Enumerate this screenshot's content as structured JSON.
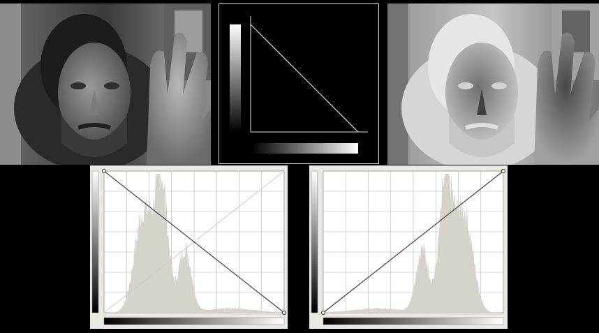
{
  "photo_original": {
    "icon": "face-photo-grayscale"
  },
  "photo_inverted": {
    "icon": "face-photo-negative"
  },
  "curve_preview": {
    "curve": "inverted",
    "colors": {
      "background": "#000000",
      "line": "#ffffff"
    }
  },
  "curves_inverted": {
    "curve": "inverted",
    "points": [
      {
        "input": 0,
        "output": 1
      },
      {
        "input": 1,
        "output": 0
      }
    ],
    "histogram_shift": "dark"
  },
  "curves_normal": {
    "curve": "identity",
    "points": [
      {
        "input": 0,
        "output": 0
      },
      {
        "input": 1,
        "output": 1
      }
    ],
    "histogram_shift": "bright"
  },
  "colors": {
    "histogram": "#d6d2cc",
    "panel_bg": "#ece9e2",
    "grid": "#b4b0a8",
    "curve_line": "#404040"
  }
}
